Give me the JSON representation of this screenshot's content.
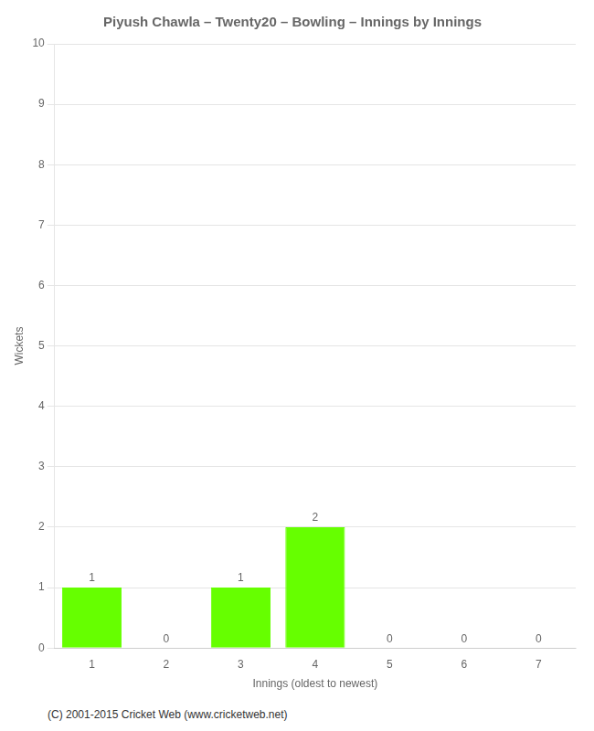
{
  "chart_data": {
    "type": "bar",
    "title": "Piyush Chawla – Twenty20 – Bowling – Innings by Innings",
    "xlabel": "Innings (oldest to newest)",
    "ylabel": "Wickets",
    "categories": [
      1,
      2,
      3,
      4,
      5,
      6,
      7
    ],
    "values": [
      1,
      0,
      1,
      2,
      0,
      0,
      0
    ],
    "color": "#66ff00",
    "ylim": [
      0,
      10
    ],
    "yticks": [
      0,
      1,
      2,
      3,
      4,
      5,
      6,
      7,
      8,
      9,
      10
    ],
    "grid": true,
    "data_labels": true,
    "annotations": [
      "(C) 2001-2015 Cricket Web (www.cricketweb.net)"
    ]
  }
}
